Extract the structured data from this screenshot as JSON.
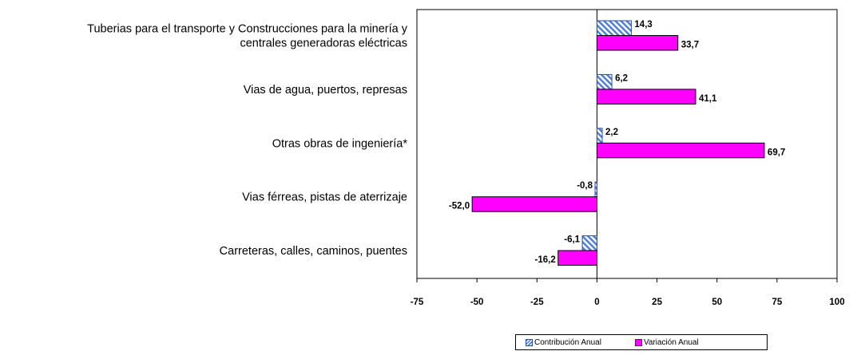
{
  "chart_data": {
    "type": "bar",
    "orientation": "horizontal",
    "categories": [
      "Tuberias para el transporte y Construcciones para la minería y centrales generadoras eléctricas",
      "Vias de agua, puertos, represas",
      "Otras obras de ingeniería*",
      "Vias férreas, pistas de aterrizaje",
      "Carreteras, calles, caminos, puentes"
    ],
    "category_lines": [
      [
        "Tuberias para el transporte y Construcciones para la minería y",
        "centrales generadoras eléctricas"
      ],
      [
        "Vias de agua, puertos, represas"
      ],
      [
        "Otras obras de ingeniería*"
      ],
      [
        "Vias férreas, pistas de aterrizaje"
      ],
      [
        "Carreteras, calles, caminos, puentes"
      ]
    ],
    "series": [
      {
        "name": "Contribución Anual",
        "color": "#4f7fd8",
        "pattern": "hatched",
        "values": [
          14.3,
          6.2,
          2.2,
          -0.8,
          -6.1
        ],
        "labels": [
          "14,3",
          "6,2",
          "2,2",
          "-0,8",
          "-6,1"
        ]
      },
      {
        "name": "Variación Anual",
        "color": "#ff00ff",
        "pattern": "solid",
        "values": [
          33.7,
          41.1,
          69.7,
          -52.0,
          -16.2
        ],
        "labels": [
          "33,7",
          "41,1",
          "69,7",
          "-52,0",
          "-16,2"
        ]
      }
    ],
    "xlim": [
      -75,
      100
    ],
    "xticks": [
      -75,
      -50,
      -25,
      0,
      25,
      50,
      75,
      100
    ],
    "xtick_labels": [
      "-75",
      "-50",
      "-25",
      "0",
      "25",
      "50",
      "75",
      "100"
    ],
    "grid": false,
    "legend": {
      "position": "bottom"
    }
  }
}
